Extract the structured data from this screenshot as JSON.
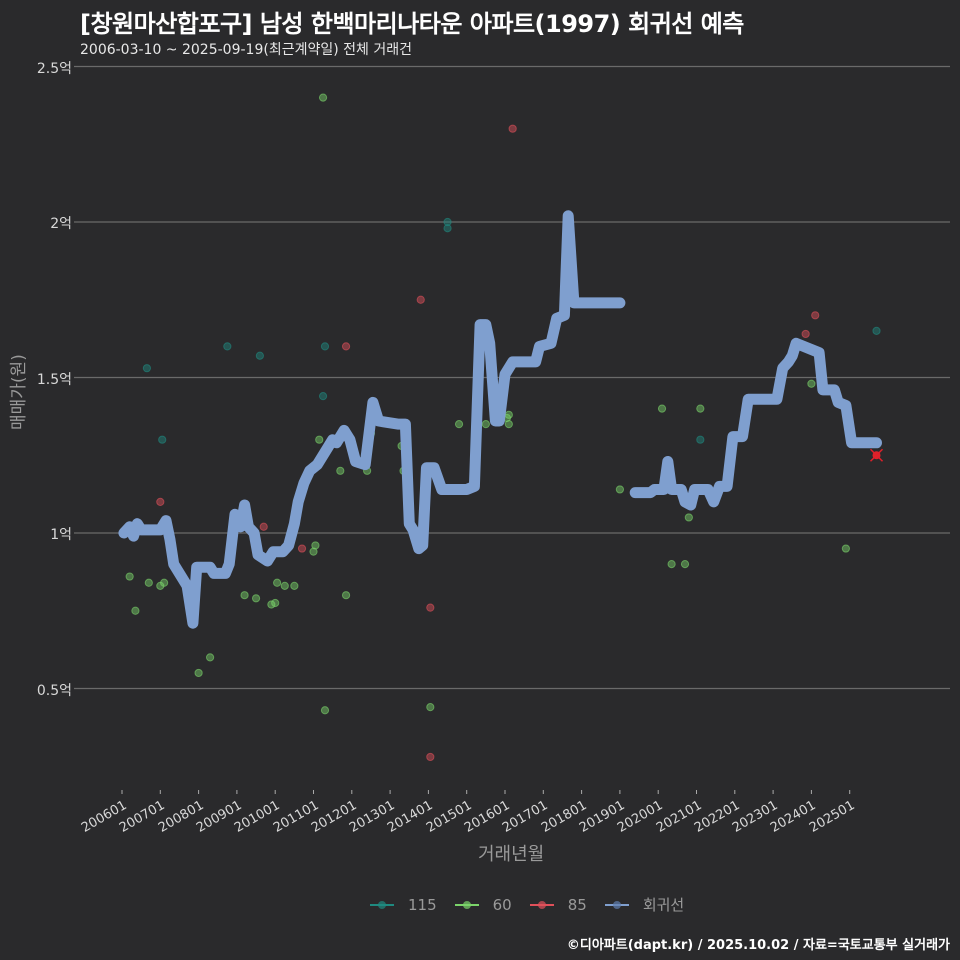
{
  "header": {
    "title": "[창원마산합포구] 남성 한백마리나타운 아파트(1997) 회귀선 예측",
    "subtitle": "2006-03-10 ~ 2025-09-19(최근계약일) 전체 거래건"
  },
  "axes": {
    "ylabel": "매매가(원)",
    "xlabel": "거래년월",
    "yticks": [
      "2.5억",
      "2억",
      "1.5억",
      "1억",
      "0.5억"
    ],
    "xticks": [
      "200601",
      "200701",
      "200801",
      "200901",
      "201001",
      "201101",
      "201201",
      "201301",
      "201401",
      "201501",
      "201601",
      "201701",
      "201801",
      "201901",
      "202001",
      "202101",
      "202201",
      "202301",
      "202401",
      "202501"
    ]
  },
  "legend": [
    {
      "label": "115",
      "color": "#1f8a80"
    },
    {
      "label": "60",
      "color": "#7bd46a"
    },
    {
      "label": "85",
      "color": "#e0505a"
    },
    {
      "label": "회귀선",
      "color": "#7f9fcf"
    }
  ],
  "footer": "©디아파트(dapt.kr) / 2025.10.02 / 자료=국토교통부 실거래가",
  "chart_data": {
    "type": "scatter",
    "title": "[창원마산합포구] 남성 한백마리나타운 아파트(1997) 회귀선 예측",
    "subtitle": "2006-03-10 ~ 2025-09-19(최근계약일) 전체 거래건",
    "xlabel": "거래년월",
    "ylabel": "매매가(원)",
    "ylim": [
      0.2,
      2.5
    ],
    "y_unit": "억",
    "grid": true,
    "legend_position": "bottom",
    "series": [
      {
        "name": "115",
        "color": "#1f8a80",
        "points": [
          [
            2006.65,
            1.53
          ],
          [
            2007.05,
            1.3
          ],
          [
            2008.75,
            1.6
          ],
          [
            2009.6,
            1.57
          ],
          [
            2011.3,
            1.6
          ],
          [
            2011.25,
            1.44
          ],
          [
            2014.5,
            2.0
          ],
          [
            2014.5,
            1.98
          ],
          [
            2021.1,
            1.3
          ],
          [
            2025.7,
            1.65
          ]
        ]
      },
      {
        "name": "60",
        "color": "#7bd46a",
        "points": [
          [
            2006.2,
            0.86
          ],
          [
            2006.35,
            0.75
          ],
          [
            2006.7,
            0.84
          ],
          [
            2007.0,
            0.83
          ],
          [
            2007.1,
            0.84
          ],
          [
            2008.0,
            0.55
          ],
          [
            2008.3,
            0.6
          ],
          [
            2009.2,
            0.8
          ],
          [
            2009.5,
            0.79
          ],
          [
            2009.9,
            0.77
          ],
          [
            2010.0,
            0.775
          ],
          [
            2010.05,
            0.84
          ],
          [
            2010.25,
            0.83
          ],
          [
            2010.5,
            0.83
          ],
          [
            2011.0,
            0.94
          ],
          [
            2011.05,
            0.96
          ],
          [
            2011.15,
            1.3
          ],
          [
            2011.25,
            2.4
          ],
          [
            2011.3,
            0.43
          ],
          [
            2011.7,
            1.2
          ],
          [
            2011.85,
            0.8
          ],
          [
            2012.4,
            1.2
          ],
          [
            2012.5,
            1.32
          ],
          [
            2013.3,
            1.28
          ],
          [
            2013.35,
            1.2
          ],
          [
            2014.05,
            0.44
          ],
          [
            2014.8,
            1.35
          ],
          [
            2015.5,
            1.35
          ],
          [
            2015.7,
            1.38
          ],
          [
            2016.05,
            1.37
          ],
          [
            2016.1,
            1.38
          ],
          [
            2016.1,
            1.35
          ],
          [
            2019.0,
            1.14
          ],
          [
            2020.1,
            1.4
          ],
          [
            2020.35,
            0.9
          ],
          [
            2020.7,
            0.9
          ],
          [
            2020.8,
            1.05
          ],
          [
            2021.1,
            1.4
          ],
          [
            2024.0,
            1.48
          ],
          [
            2024.9,
            0.95
          ]
        ]
      },
      {
        "name": "85",
        "color": "#e0505a",
        "points": [
          [
            2007.0,
            1.1
          ],
          [
            2009.7,
            1.02
          ],
          [
            2010.7,
            0.95
          ],
          [
            2011.85,
            1.6
          ],
          [
            2013.8,
            1.75
          ],
          [
            2014.05,
            0.76
          ],
          [
            2014.05,
            0.28
          ],
          [
            2016.2,
            2.3
          ],
          [
            2023.85,
            1.64
          ],
          [
            2024.1,
            1.7
          ]
        ]
      }
    ],
    "regression": {
      "name": "회귀선",
      "color": "#7f9fcf",
      "segments": [
        [
          [
            2006.05,
            1.0
          ],
          [
            2006.2,
            1.02
          ],
          [
            2006.3,
            0.99
          ],
          [
            2006.4,
            1.03
          ],
          [
            2006.5,
            1.01
          ],
          [
            2007.0,
            1.01
          ],
          [
            2007.15,
            1.04
          ],
          [
            2007.25,
            0.98
          ],
          [
            2007.35,
            0.9
          ],
          [
            2007.5,
            0.87
          ],
          [
            2007.7,
            0.83
          ],
          [
            2007.85,
            0.71
          ],
          [
            2007.95,
            0.89
          ],
          [
            2008.3,
            0.89
          ],
          [
            2008.4,
            0.87
          ],
          [
            2008.7,
            0.87
          ],
          [
            2008.8,
            0.9
          ],
          [
            2008.95,
            1.06
          ],
          [
            2009.1,
            1.02
          ],
          [
            2009.2,
            1.09
          ],
          [
            2009.3,
            1.02
          ],
          [
            2009.45,
            1.0
          ],
          [
            2009.55,
            0.93
          ],
          [
            2009.8,
            0.91
          ],
          [
            2009.95,
            0.94
          ],
          [
            2010.2,
            0.94
          ],
          [
            2010.35,
            0.96
          ],
          [
            2010.5,
            1.03
          ],
          [
            2010.6,
            1.1
          ],
          [
            2010.75,
            1.16
          ],
          [
            2010.9,
            1.2
          ],
          [
            2011.1,
            1.22
          ],
          [
            2011.3,
            1.26
          ],
          [
            2011.5,
            1.3
          ],
          [
            2011.6,
            1.29
          ],
          [
            2011.8,
            1.33
          ],
          [
            2011.95,
            1.3
          ],
          [
            2012.1,
            1.23
          ],
          [
            2012.35,
            1.22
          ],
          [
            2012.55,
            1.42
          ],
          [
            2012.7,
            1.36
          ],
          [
            2013.2,
            1.35
          ],
          [
            2013.4,
            1.35
          ],
          [
            2013.5,
            1.03
          ],
          [
            2013.6,
            1.01
          ],
          [
            2013.75,
            0.95
          ],
          [
            2013.85,
            0.96
          ],
          [
            2013.95,
            1.21
          ],
          [
            2014.15,
            1.21
          ],
          [
            2014.35,
            1.14
          ],
          [
            2015.0,
            1.14
          ],
          [
            2015.2,
            1.15
          ],
          [
            2015.35,
            1.67
          ],
          [
            2015.5,
            1.67
          ],
          [
            2015.6,
            1.61
          ],
          [
            2015.75,
            1.36
          ],
          [
            2015.85,
            1.36
          ],
          [
            2016.0,
            1.51
          ],
          [
            2016.2,
            1.55
          ],
          [
            2016.8,
            1.55
          ],
          [
            2016.9,
            1.6
          ],
          [
            2017.2,
            1.61
          ],
          [
            2017.35,
            1.69
          ],
          [
            2017.55,
            1.7
          ],
          [
            2017.65,
            2.02
          ],
          [
            2017.8,
            1.74
          ],
          [
            2019.0,
            1.74
          ]
        ],
        [
          [
            2019.4,
            1.13
          ],
          [
            2019.8,
            1.13
          ],
          [
            2019.9,
            1.14
          ],
          [
            2020.15,
            1.14
          ],
          [
            2020.25,
            1.23
          ],
          [
            2020.35,
            1.14
          ],
          [
            2020.6,
            1.14
          ],
          [
            2020.7,
            1.1
          ],
          [
            2020.85,
            1.09
          ],
          [
            2020.95,
            1.14
          ],
          [
            2021.3,
            1.14
          ],
          [
            2021.45,
            1.1
          ],
          [
            2021.6,
            1.15
          ],
          [
            2021.8,
            1.15
          ],
          [
            2021.95,
            1.31
          ],
          [
            2022.2,
            1.31
          ],
          [
            2022.35,
            1.43
          ],
          [
            2023.1,
            1.43
          ],
          [
            2023.25,
            1.53
          ],
          [
            2023.4,
            1.55
          ],
          [
            2023.5,
            1.57
          ],
          [
            2023.6,
            1.61
          ],
          [
            2024.2,
            1.58
          ],
          [
            2024.3,
            1.46
          ],
          [
            2024.6,
            1.46
          ],
          [
            2024.7,
            1.42
          ],
          [
            2024.9,
            1.41
          ],
          [
            2025.05,
            1.29
          ],
          [
            2025.7,
            1.29
          ]
        ]
      ],
      "prediction_marker": {
        "x": 2025.7,
        "y": 1.25,
        "color": "#e0202a"
      }
    }
  }
}
